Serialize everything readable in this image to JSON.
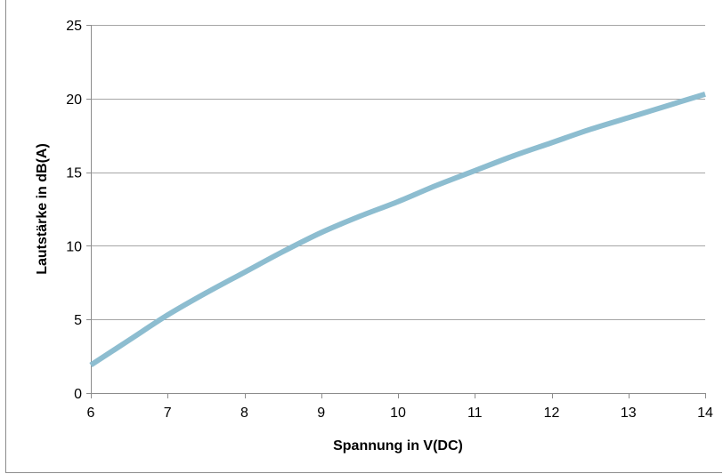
{
  "chart_data": {
    "type": "line",
    "title": "",
    "xlabel": "Spannung in V(DC)",
    "ylabel": "Lautstärke in dB(A)",
    "xlim": [
      6,
      14
    ],
    "ylim": [
      0,
      25
    ],
    "x_ticks": [
      6,
      7,
      8,
      9,
      10,
      11,
      12,
      13,
      14
    ],
    "y_ticks": [
      0,
      5,
      10,
      15,
      20,
      25
    ],
    "grid": "horizontal",
    "legend": "none",
    "series": [
      {
        "color": "#8dbdd0",
        "x": [
          6,
          6.5,
          7,
          7.5,
          8,
          8.5,
          9,
          9.5,
          10,
          10.5,
          11,
          11.5,
          12,
          12.5,
          13,
          13.5,
          14
        ],
        "y": [
          1.9,
          3.6,
          5.3,
          6.8,
          8.2,
          9.6,
          10.9,
          12.0,
          13.0,
          14.1,
          15.1,
          16.1,
          17.0,
          17.9,
          18.7,
          19.5,
          20.3
        ]
      }
    ]
  }
}
